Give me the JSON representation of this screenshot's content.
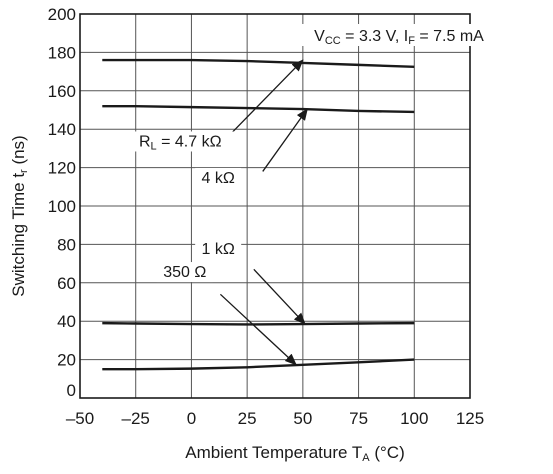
{
  "chart_data": {
    "type": "line",
    "title": "",
    "condition": {
      "vcc_main": "V",
      "vcc_sub": "CC",
      "vcc_value": " = 3.3 V, ",
      "if_main": "I",
      "if_sub": "F",
      "if_value": " = 7.5 mA"
    },
    "xlabel": {
      "main": "Ambient Temperature  T",
      "sub": "A",
      "unit": " (°C)"
    },
    "ylabel": {
      "main": "Switching Time  t",
      "sub": "r",
      "unit": " (ns)"
    },
    "xlim": [
      -50,
      125
    ],
    "ylim": [
      0,
      200
    ],
    "x_ticks": [
      -50,
      -25,
      0,
      25,
      50,
      75,
      100,
      125
    ],
    "x_tick_labels": [
      "–50",
      "–25",
      "0",
      "25",
      "50",
      "75",
      "100",
      "125"
    ],
    "y_ticks": [
      0,
      20,
      40,
      60,
      80,
      100,
      120,
      140,
      160,
      180,
      200
    ],
    "y_tick_labels": [
      "0",
      "20",
      "40",
      "60",
      "80",
      "100",
      "120",
      "140",
      "160",
      "180",
      "200"
    ],
    "grid": true,
    "series": [
      {
        "label": "R_L = 4.7 kΩ",
        "x": [
          -40,
          -25,
          0,
          25,
          50,
          75,
          100
        ],
        "y": [
          176,
          176,
          176,
          175.5,
          174.5,
          173.5,
          172.5
        ]
      },
      {
        "label": "4 kΩ",
        "x": [
          -40,
          -25,
          0,
          25,
          50,
          75,
          100
        ],
        "y": [
          152,
          152,
          151.5,
          151,
          150.5,
          149.5,
          149
        ]
      },
      {
        "label": "1 kΩ",
        "x": [
          -40,
          -25,
          0,
          25,
          50,
          75,
          100
        ],
        "y": [
          39,
          38.8,
          38.5,
          38.3,
          38.5,
          38.8,
          39
        ]
      },
      {
        "label": "350 Ω",
        "x": [
          -40,
          -25,
          0,
          25,
          50,
          75,
          100
        ],
        "y": [
          15,
          15,
          15.3,
          16,
          17.3,
          18.6,
          20
        ]
      }
    ],
    "annotations": [
      {
        "main": "R",
        "sub": "L",
        "rest": " = 4.7 kΩ",
        "text_at": [
          -5,
          131
        ],
        "arrow_from": [
          18,
          138
        ],
        "arrow_to": [
          50,
          176
        ]
      },
      {
        "main": "",
        "sub": "",
        "rest": "4 kΩ",
        "text_at": [
          12,
          112
        ],
        "arrow_from": [
          32,
          118
        ],
        "arrow_to": [
          52,
          150.5
        ]
      },
      {
        "main": "",
        "sub": "",
        "rest": "1 kΩ",
        "text_at": [
          12,
          75
        ],
        "arrow_from": [
          28,
          67
        ],
        "arrow_to": [
          51,
          38.5
        ]
      },
      {
        "main": "",
        "sub": "",
        "rest": "350 Ω",
        "text_at": [
          -3,
          63
        ],
        "arrow_from": [
          13,
          54
        ],
        "arrow_to": [
          47,
          17.3
        ]
      }
    ]
  }
}
